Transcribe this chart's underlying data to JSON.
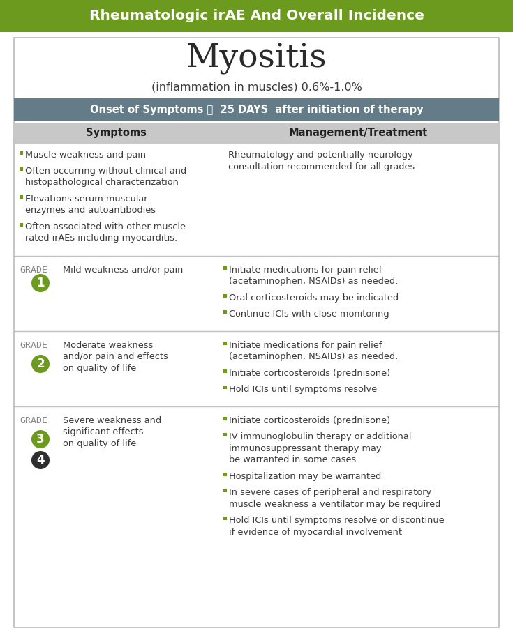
{
  "title_banner": "Rheumatologic irAE And Overall Incidence",
  "title_banner_bg": "#6b9a1e",
  "title_banner_color": "#ffffff",
  "main_title": "Myositis",
  "main_subtitle": "(inflammation in muscles) 0.6%-1.0%",
  "onset_banner_pre": "Onset of Symptoms ⌛  ",
  "onset_banner_bold": "25 DAYS",
  "onset_banner_post": "  after initiation of therapy",
  "onset_banner_bg": "#637c88",
  "onset_banner_color": "#ffffff",
  "header_bg": "#c8c8c8",
  "col1_header": "Symptoms",
  "col2_header": "Management/Treatment",
  "bg_color": "#ffffff",
  "text_color": "#3a3a3a",
  "bullet_color": "#6b9a1e",
  "grade_label_color": "#888888",
  "divider_color": "#c0c0c0",
  "grade_circle_green": "#6b9a1e",
  "grade_circle_dark": "#2e2e2e",
  "general_symptoms": [
    "Muscle weakness and pain",
    "Often occurring without clinical and\nhistopathological characterization",
    "Elevations serum muscular\nenzymes and autoantibodies",
    "Often associated with other muscle\nrated irAEs including myocarditis."
  ],
  "general_management": "Rheumatology and potentially neurology\nconsultation recommended for all grades",
  "grade1_symptom": "Mild weakness and/or pain",
  "grade1_management": [
    "Initiate medications for pain relief\n(acetaminophen, NSAIDs) as needed.",
    "Oral corticosteroids may be indicated.",
    "Continue ICIs with close monitoring"
  ],
  "grade2_symptom": "Moderate weakness\nand/or pain and effects\non quality of life",
  "grade2_management": [
    "Initiate medications for pain relief\n(acetaminophen, NSAIDs) as needed.",
    "Initiate corticosteroids (prednisone)",
    "Hold ICIs until symptoms resolve"
  ],
  "grade34_symptom": "Severe weakness and\nsignificant effects\non quality of life",
  "grade34_management": [
    "Initiate corticosteroids (prednisone)",
    "IV immunoglobulin therapy or additional\nimmunosuppressant therapy may\nbe warranted in some cases",
    "Hospitalization may be warranted",
    "In severe cases of peripheral and respiratory\nmuscle weakness a ventilator may be required",
    "Hold ICIs until symptoms resolve or discontinue\nif evidence of myocardial involvement"
  ],
  "figwidth": 7.35,
  "figheight": 9.08,
  "dpi": 100
}
